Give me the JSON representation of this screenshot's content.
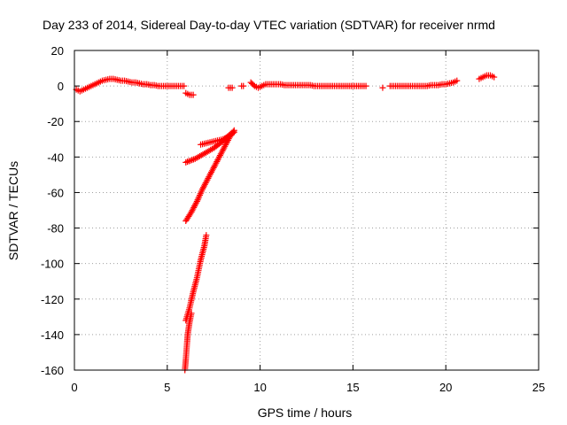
{
  "chart_data": {
    "type": "scatter",
    "title": "Day 233 of 2014, Sidereal Day-to-day VTEC variation (SDTVAR) for receiver nrmd",
    "xlabel": "GPS time / hours",
    "ylabel": "SDTVAR / TECUs",
    "xlim": [
      0,
      25
    ],
    "ylim": [
      -160,
      20
    ],
    "x_ticks": [
      0,
      5,
      10,
      15,
      20,
      25
    ],
    "y_ticks": [
      20,
      0,
      -20,
      -40,
      -60,
      -80,
      -100,
      -120,
      -140,
      -160
    ],
    "grid": true,
    "marker": "+",
    "color": "#ff0000",
    "series": [
      {
        "segments": [
          [
            [
              0.1,
              -2
            ],
            [
              0.3,
              -3
            ],
            [
              0.5,
              -2
            ],
            [
              0.7,
              -1
            ],
            [
              0.9,
              0
            ],
            [
              1.1,
              1
            ],
            [
              1.3,
              2
            ],
            [
              1.5,
              3
            ],
            [
              1.7,
              3.5
            ],
            [
              1.9,
              4
            ],
            [
              2.1,
              4
            ],
            [
              2.3,
              3.5
            ],
            [
              2.5,
              3
            ],
            [
              2.7,
              3
            ],
            [
              2.9,
              2.5
            ],
            [
              3.1,
              2
            ],
            [
              3.3,
              2
            ],
            [
              3.5,
              1.5
            ],
            [
              3.7,
              1
            ],
            [
              3.9,
              1
            ],
            [
              4.1,
              0.5
            ],
            [
              4.3,
              0.5
            ],
            [
              4.5,
              0
            ],
            [
              4.7,
              0
            ],
            [
              4.9,
              0
            ],
            [
              5.1,
              0
            ],
            [
              5.3,
              0
            ],
            [
              5.5,
              0
            ],
            [
              5.7,
              0
            ],
            [
              5.9,
              0
            ]
          ],
          [
            [
              6.0,
              -4
            ],
            [
              6.2,
              -5
            ],
            [
              6.4,
              -5
            ]
          ],
          [
            [
              8.3,
              -1
            ],
            [
              8.5,
              -1
            ]
          ],
          [
            [
              9.0,
              0
            ],
            [
              9.1,
              0
            ]
          ],
          [
            [
              9.5,
              2
            ],
            [
              9.7,
              0
            ],
            [
              9.9,
              -1
            ],
            [
              10.1,
              0
            ],
            [
              10.3,
              1
            ],
            [
              10.5,
              1
            ],
            [
              10.7,
              1
            ],
            [
              10.9,
              1
            ],
            [
              11.1,
              1
            ],
            [
              11.3,
              0.5
            ],
            [
              11.5,
              0.5
            ],
            [
              11.7,
              0.5
            ],
            [
              11.9,
              0.5
            ],
            [
              12.1,
              0.5
            ],
            [
              12.3,
              0.5
            ],
            [
              12.5,
              0.5
            ],
            [
              12.7,
              0.5
            ],
            [
              12.9,
              0
            ],
            [
              13.1,
              0
            ],
            [
              13.3,
              0
            ],
            [
              13.5,
              0
            ],
            [
              13.7,
              0
            ],
            [
              13.9,
              0
            ],
            [
              14.1,
              0
            ],
            [
              14.3,
              0
            ],
            [
              14.5,
              0
            ],
            [
              14.7,
              0
            ],
            [
              14.9,
              0
            ],
            [
              15.1,
              0
            ],
            [
              15.3,
              0
            ],
            [
              15.5,
              0
            ],
            [
              15.7,
              0
            ]
          ],
          [
            [
              16.6,
              -1
            ]
          ],
          [
            [
              17.0,
              0
            ],
            [
              17.2,
              0
            ],
            [
              17.4,
              0
            ],
            [
              17.6,
              0
            ],
            [
              17.8,
              0
            ],
            [
              18.0,
              0
            ],
            [
              18.2,
              0
            ],
            [
              18.4,
              0
            ],
            [
              18.6,
              0
            ],
            [
              18.8,
              0
            ],
            [
              19.0,
              0
            ],
            [
              19.2,
              0.5
            ],
            [
              19.4,
              0.5
            ],
            [
              19.6,
              0.5
            ],
            [
              19.8,
              1
            ],
            [
              20.0,
              1
            ],
            [
              20.2,
              1.5
            ],
            [
              20.4,
              2
            ],
            [
              20.6,
              3
            ]
          ],
          [
            [
              21.8,
              4
            ],
            [
              22.0,
              5
            ],
            [
              22.2,
              6
            ],
            [
              22.4,
              6
            ],
            [
              22.6,
              5
            ]
          ],
          [
            [
              6.0,
              -43
            ],
            [
              6.5,
              -41
            ],
            [
              7.0,
              -38
            ],
            [
              7.5,
              -35
            ],
            [
              8.0,
              -31
            ],
            [
              8.4,
              -27
            ]
          ],
          [
            [
              6.8,
              -33
            ],
            [
              7.2,
              -32
            ],
            [
              7.6,
              -31
            ],
            [
              8.0,
              -30
            ],
            [
              8.4,
              -28
            ],
            [
              8.6,
              -26
            ]
          ],
          [
            [
              6.0,
              -76
            ],
            [
              6.3,
              -71
            ],
            [
              6.6,
              -65
            ],
            [
              6.9,
              -58
            ],
            [
              7.2,
              -52
            ],
            [
              7.5,
              -46
            ],
            [
              7.8,
              -40
            ],
            [
              8.1,
              -34
            ],
            [
              8.4,
              -28
            ],
            [
              8.6,
              -25
            ]
          ],
          [
            [
              6.0,
              -132
            ],
            [
              6.2,
              -125
            ],
            [
              6.4,
              -116
            ],
            [
              6.6,
              -108
            ],
            [
              6.8,
              -98
            ],
            [
              7.0,
              -90
            ],
            [
              7.1,
              -84
            ]
          ],
          [
            [
              5.95,
              -160
            ],
            [
              6.0,
              -154
            ],
            [
              6.05,
              -147
            ],
            [
              6.1,
              -140
            ],
            [
              6.2,
              -133
            ],
            [
              6.3,
              -128
            ]
          ]
        ]
      }
    ]
  }
}
